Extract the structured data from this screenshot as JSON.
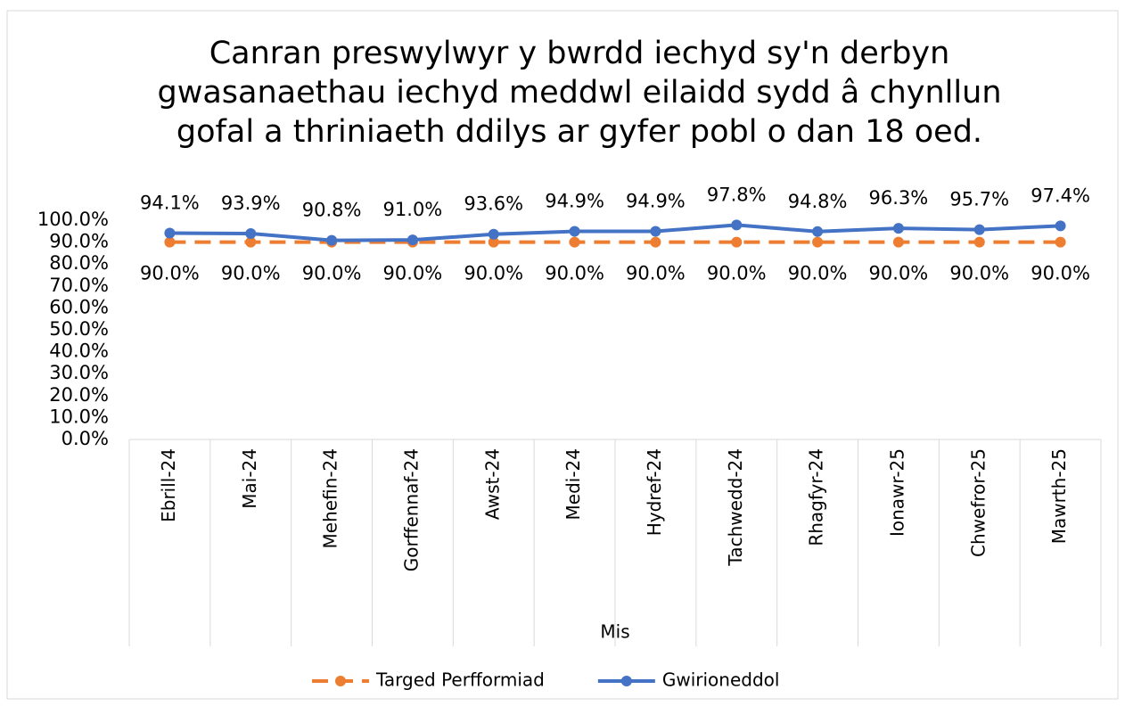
{
  "chart_data": {
    "type": "line",
    "title": "Canran preswylwyr y bwrdd iechyd sy'n derbyn gwasanaethau iechyd meddwl eilaidd sydd â chynllun gofal a thriniaeth ddilys ar gyfer pobl o dan 18 oed.",
    "x_label": "Mis",
    "categories": [
      "Ebrill-24",
      "Mai-24",
      "Mehefin-24",
      "Gorffennaf-24",
      "Awst-24",
      "Medi-24",
      "Hydref-24",
      "Tachwedd-24",
      "Rhagfyr-24",
      "Ionawr-25",
      "Chwefror-25",
      "Mawrth-25"
    ],
    "series": [
      {
        "name": "Targed Perfformiad",
        "color": "#ed7d31",
        "dashed": true,
        "values": [
          90,
          90,
          90,
          90,
          90,
          90,
          90,
          90,
          90,
          90,
          90,
          90
        ],
        "value_labels": [
          "90.0%",
          "90.0%",
          "90.0%",
          "90.0%",
          "90.0%",
          "90.0%",
          "90.0%",
          "90.0%",
          "90.0%",
          "90.0%",
          "90.0%",
          "90.0%"
        ]
      },
      {
        "name": "Gwirioneddol",
        "color": "#4472c4",
        "dashed": false,
        "values": [
          94.1,
          93.9,
          90.8,
          91.0,
          93.6,
          94.9,
          94.9,
          97.8,
          94.8,
          96.3,
          95.7,
          97.4
        ],
        "value_labels": [
          "94.1%",
          "93.9%",
          "90.8%",
          "91.0%",
          "93.6%",
          "94.9%",
          "94.9%",
          "97.8%",
          "94.8%",
          "96.3%",
          "95.7%",
          "97.4%"
        ]
      }
    ],
    "ylim": [
      0,
      100
    ],
    "yticks": [
      {
        "value": 0,
        "label": "0.0%"
      },
      {
        "value": 10,
        "label": "10.0%"
      },
      {
        "value": 20,
        "label": "20.0%"
      },
      {
        "value": 30,
        "label": "30.0%"
      },
      {
        "value": 40,
        "label": "40.0%"
      },
      {
        "value": 50,
        "label": "50.0%"
      },
      {
        "value": 60,
        "label": "60.0%"
      },
      {
        "value": 70,
        "label": "70.0%"
      },
      {
        "value": 80,
        "label": "80.0%"
      },
      {
        "value": 90,
        "label": "90.0%"
      },
      {
        "value": 100,
        "label": "100.0%"
      }
    ],
    "legend": "bottom"
  }
}
